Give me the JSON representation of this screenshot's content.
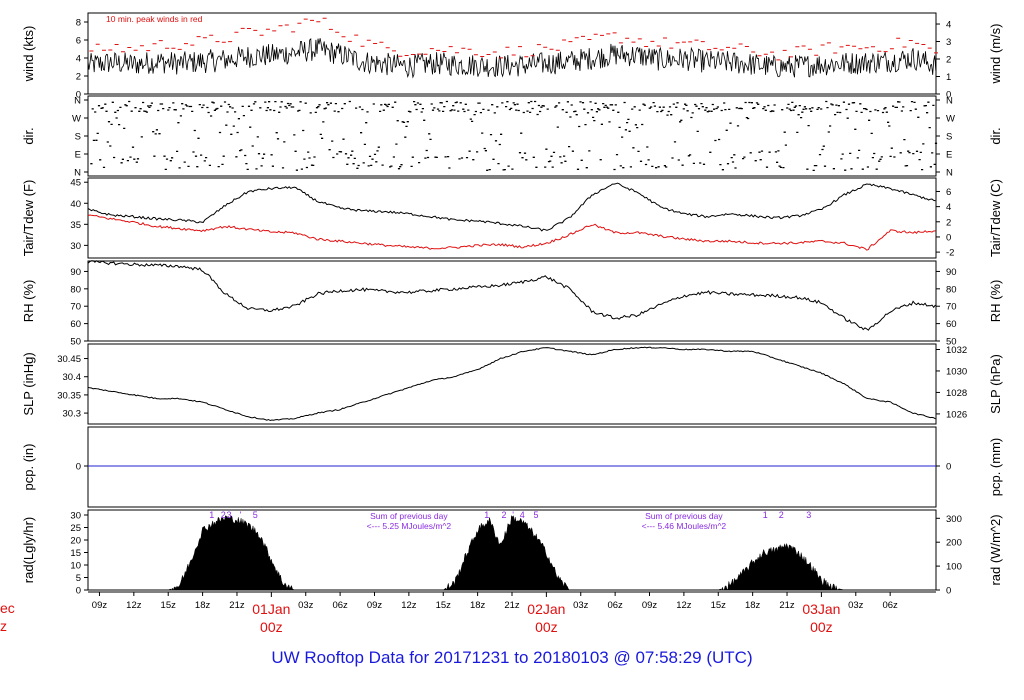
{
  "footer": {
    "title": "UW Rooftop Data for 20171231  to  20180103 @ 07:58:29  (UTC)"
  },
  "edge_labels": {
    "top": "ec",
    "bottom": "z"
  },
  "chart_data": [
    {
      "type": "line",
      "id": "wind",
      "ylabel_left": "wind (kts)",
      "ylabel_right": "wind (m/s)",
      "annotation": "10 min. peak winds in red",
      "ylim": [
        0,
        9
      ],
      "left_ticks": [
        0,
        2,
        4,
        6,
        8
      ],
      "right_ticks": [
        0,
        1,
        2,
        3,
        4
      ],
      "series": [
        {
          "name": "wind",
          "color": "#000000",
          "hours": [
            0,
            2,
            4,
            6,
            8,
            10,
            12,
            14,
            16,
            18,
            20,
            22,
            24,
            26,
            28,
            30,
            32,
            34,
            36,
            38,
            40,
            42,
            44,
            46,
            48,
            50,
            52,
            54,
            56,
            58,
            60,
            62,
            64,
            66,
            68,
            70,
            72,
            74
          ],
          "values": [
            3.2,
            3.5,
            3.3,
            3.6,
            3.4,
            3.6,
            3.8,
            4.2,
            4.3,
            4.6,
            5.0,
            4.4,
            3.6,
            3.3,
            3.1,
            3.4,
            3.3,
            3.2,
            3.1,
            3.2,
            3.4,
            3.6,
            4.0,
            4.4,
            4.3,
            3.8,
            3.9,
            3.6,
            3.5,
            3.3,
            3.0,
            3.1,
            3.3,
            3.4,
            3.5,
            3.7,
            4.0,
            3.2
          ]
        },
        {
          "name": "peak",
          "color": "#e01010",
          "hours": [
            0,
            2,
            4,
            6,
            8,
            10,
            12,
            14,
            16,
            18,
            20,
            22,
            24,
            26,
            28,
            30,
            32,
            34,
            36,
            38,
            40,
            42,
            44,
            46,
            48,
            50,
            52,
            54,
            56,
            58,
            60,
            62,
            64,
            66,
            68,
            70,
            72,
            74
          ],
          "values": [
            4.6,
            5.2,
            5.0,
            5.4,
            5.6,
            5.8,
            6.2,
            6.8,
            7.0,
            7.6,
            8.2,
            7.0,
            5.8,
            5.0,
            4.8,
            5.0,
            4.9,
            4.8,
            4.6,
            4.8,
            5.0,
            5.4,
            6.0,
            6.4,
            6.0,
            5.6,
            5.6,
            5.2,
            5.0,
            4.8,
            4.4,
            4.6,
            5.0,
            5.2,
            5.2,
            5.4,
            5.8,
            4.6
          ]
        }
      ]
    },
    {
      "type": "scatter",
      "id": "dir",
      "ylabel_left": "dir.",
      "ylabel_right": "dir.",
      "left_ticks": [
        "N",
        "W",
        "S",
        "E",
        "N"
      ],
      "right_ticks": [
        "N",
        "W",
        "S",
        "E",
        "N"
      ],
      "note": "wind direction points; mostly near N with scattered E"
    },
    {
      "type": "line",
      "id": "temp",
      "ylabel_left": "Tair/Tdew (F)",
      "ylabel_right": "Tair/Tdew (C)",
      "ylim": [
        27,
        46
      ],
      "left_ticks": [
        30,
        35,
        40,
        45
      ],
      "right_ticks": [
        -2,
        0,
        2,
        4,
        6
      ],
      "series": [
        {
          "name": "Tair",
          "color": "#000000",
          "hours": [
            0,
            2,
            4,
            6,
            8,
            10,
            12,
            14,
            16,
            18,
            20,
            22,
            24,
            26,
            28,
            30,
            32,
            34,
            36,
            38,
            40,
            42,
            44,
            46,
            48,
            50,
            52,
            54,
            56,
            58,
            60,
            62,
            64,
            66,
            68,
            70,
            72,
            74
          ],
          "values": [
            38.5,
            37.2,
            36.8,
            36.3,
            36.0,
            35.5,
            39.5,
            42.8,
            43.5,
            43.8,
            40.5,
            38.8,
            38.2,
            38.0,
            37.5,
            36.8,
            36.0,
            35.8,
            35.2,
            34.5,
            33.5,
            36.5,
            42.0,
            44.8,
            42.5,
            39.0,
            37.5,
            36.8,
            37.5,
            37.0,
            36.5,
            37.0,
            38.5,
            42.0,
            44.5,
            43.5,
            42.0,
            40.5
          ]
        },
        {
          "name": "Tdew",
          "color": "#e01010",
          "hours": [
            0,
            2,
            4,
            6,
            8,
            10,
            12,
            14,
            16,
            18,
            20,
            22,
            24,
            26,
            28,
            30,
            32,
            34,
            36,
            38,
            40,
            42,
            44,
            46,
            48,
            50,
            52,
            54,
            56,
            58,
            60,
            62,
            64,
            66,
            68,
            70,
            72,
            74
          ],
          "values": [
            37.2,
            36.3,
            35.5,
            34.5,
            34.0,
            33.5,
            34.5,
            33.8,
            33.2,
            33.0,
            31.5,
            31.0,
            30.5,
            30.0,
            29.6,
            29.3,
            29.5,
            30.0,
            30.2,
            29.6,
            30.5,
            32.5,
            35.0,
            33.0,
            33.0,
            32.2,
            31.5,
            31.0,
            31.0,
            30.6,
            30.5,
            30.6,
            31.0,
            30.5,
            29.0,
            33.5,
            33.0,
            33.5
          ]
        }
      ]
    },
    {
      "type": "line",
      "id": "rh",
      "ylabel_left": "RH (%)",
      "ylabel_right": "RH (%)",
      "ylim": [
        50,
        96
      ],
      "left_ticks": [
        50,
        60,
        70,
        80,
        90
      ],
      "right_ticks": [
        50,
        60,
        70,
        80,
        90
      ],
      "series": [
        {
          "name": "RH",
          "color": "#000000",
          "hours": [
            0,
            2,
            4,
            6,
            8,
            10,
            12,
            14,
            16,
            18,
            20,
            22,
            24,
            26,
            28,
            30,
            32,
            34,
            36,
            38,
            40,
            42,
            44,
            46,
            48,
            50,
            52,
            54,
            56,
            58,
            60,
            62,
            64,
            66,
            68,
            70,
            72,
            74
          ],
          "values": [
            95.5,
            94.8,
            94.0,
            93.5,
            93.0,
            91.0,
            77.0,
            68.5,
            67.5,
            70.0,
            77.0,
            79.0,
            79.5,
            78.5,
            78.0,
            79.0,
            80.0,
            81.0,
            82.0,
            84.0,
            87.0,
            80.0,
            67.0,
            63.0,
            65.0,
            71.0,
            76.0,
            78.0,
            77.0,
            76.5,
            76.0,
            75.0,
            72.0,
            63.0,
            56.0,
            67.0,
            72.0,
            70.0
          ]
        }
      ]
    },
    {
      "type": "line",
      "id": "slp",
      "ylabel_left": "SLP (inHg)",
      "ylabel_right": "SLP (hPa)",
      "ylim": [
        30.27,
        30.49
      ],
      "left_ticks": [
        30.3,
        30.35,
        30.4,
        30.45
      ],
      "right_ticks": [
        1026,
        1028,
        1030,
        1032
      ],
      "series": [
        {
          "name": "SLP",
          "color": "#000000",
          "hours": [
            0,
            2,
            4,
            6,
            8,
            10,
            12,
            14,
            16,
            18,
            20,
            22,
            24,
            26,
            28,
            30,
            32,
            34,
            36,
            38,
            40,
            42,
            44,
            46,
            48,
            50,
            52,
            54,
            56,
            58,
            60,
            62,
            64,
            66,
            68,
            70,
            72,
            74
          ],
          "values": [
            30.37,
            30.36,
            30.35,
            30.34,
            30.34,
            30.33,
            30.31,
            30.29,
            30.28,
            30.285,
            30.3,
            30.31,
            30.33,
            30.35,
            30.37,
            30.39,
            30.4,
            30.42,
            30.45,
            30.47,
            30.48,
            30.47,
            30.46,
            30.475,
            30.48,
            30.48,
            30.475,
            30.475,
            30.47,
            30.47,
            30.45,
            30.43,
            30.41,
            30.38,
            30.34,
            30.33,
            30.3,
            30.285
          ]
        }
      ]
    },
    {
      "type": "line",
      "id": "pcp",
      "ylabel_left": "pcp. (in)",
      "ylabel_right": "pcp. (mm)",
      "left_ticks": [
        0
      ],
      "right_ticks": [
        0
      ],
      "series": [
        {
          "name": "pcp",
          "color": "#2020d0",
          "hours": [
            0,
            74
          ],
          "values": [
            0,
            0
          ]
        }
      ]
    },
    {
      "type": "area",
      "id": "rad",
      "ylabel_left": "rad(Lgly/hr)",
      "ylabel_right": "rad (W/m^2)",
      "ylim": [
        0,
        32
      ],
      "left_ticks": [
        0,
        5,
        10,
        15,
        20,
        25,
        30
      ],
      "right_ticks": [
        0,
        100,
        200,
        300
      ],
      "annotations": [
        {
          "text": "Sum of previous day",
          "hour": 28
        },
        {
          "text": "<--- 5.25 MJoules/m^2",
          "hour": 28
        },
        {
          "text": "Sum of previous day",
          "hour": 52
        },
        {
          "text": "<--- 5.46 MJoules/m^2",
          "hour": 52
        }
      ],
      "peak_markers": [
        {
          "label": "1",
          "hour": 10.8
        },
        {
          "label": "2",
          "hour": 11.8
        },
        {
          "label": "3",
          "hour": 12.3
        },
        {
          "label": "'",
          "hour": 13.3
        },
        {
          "label": "5",
          "hour": 14.6
        },
        {
          "label": "1",
          "hour": 34.8
        },
        {
          "label": "2",
          "hour": 36.3
        },
        {
          "label": "'",
          "hour": 37.1
        },
        {
          "label": "4",
          "hour": 37.9
        },
        {
          "label": "5",
          "hour": 39.1
        },
        {
          "label": "1",
          "hour": 59.1
        },
        {
          "label": "2",
          "hour": 60.5
        },
        {
          "label": "3",
          "hour": 62.9
        }
      ],
      "series": [
        {
          "name": "rad",
          "color": "#000000",
          "hours": [
            0,
            7,
            8,
            9,
            10,
            11,
            12,
            13,
            14,
            15,
            16,
            17,
            18,
            31,
            32,
            33,
            34,
            35,
            36,
            37,
            38,
            39,
            40,
            41,
            42,
            43,
            55,
            56,
            57,
            58,
            59,
            60,
            61,
            62,
            63,
            64,
            65,
            66,
            74
          ],
          "values": [
            0,
            0,
            2,
            12,
            24,
            27,
            29,
            28,
            26,
            22,
            12,
            3,
            0,
            0,
            3,
            14,
            24,
            28,
            18,
            29,
            27,
            22,
            15,
            5,
            0,
            0,
            0,
            2,
            6,
            11,
            15,
            16,
            18,
            15,
            10,
            4,
            1,
            0,
            0
          ]
        }
      ]
    }
  ],
  "x_axis": {
    "range_hours": [
      0,
      74
    ],
    "ticks": [
      {
        "label": "09z",
        "hour": 1
      },
      {
        "label": "12z",
        "hour": 4
      },
      {
        "label": "15z",
        "hour": 7
      },
      {
        "label": "18z",
        "hour": 10
      },
      {
        "label": "21z",
        "hour": 13
      },
      {
        "label": "03z",
        "hour": 19
      },
      {
        "label": "06z",
        "hour": 22
      },
      {
        "label": "09z",
        "hour": 25
      },
      {
        "label": "12z",
        "hour": 28
      },
      {
        "label": "15z",
        "hour": 31
      },
      {
        "label": "18z",
        "hour": 34
      },
      {
        "label": "21z",
        "hour": 37
      },
      {
        "label": "03z",
        "hour": 43
      },
      {
        "label": "06z",
        "hour": 46
      },
      {
        "label": "09z",
        "hour": 49
      },
      {
        "label": "12z",
        "hour": 52
      },
      {
        "label": "15z",
        "hour": 55
      },
      {
        "label": "18z",
        "hour": 58
      },
      {
        "label": "21z",
        "hour": 61
      },
      {
        "label": "03z",
        "hour": 67
      },
      {
        "label": "06z",
        "hour": 70
      }
    ],
    "day_labels": [
      {
        "date": "01Jan",
        "time": "00z",
        "hour": 16
      },
      {
        "date": "02Jan",
        "time": "00z",
        "hour": 40
      },
      {
        "date": "03Jan",
        "time": "00z",
        "hour": 64
      }
    ]
  }
}
